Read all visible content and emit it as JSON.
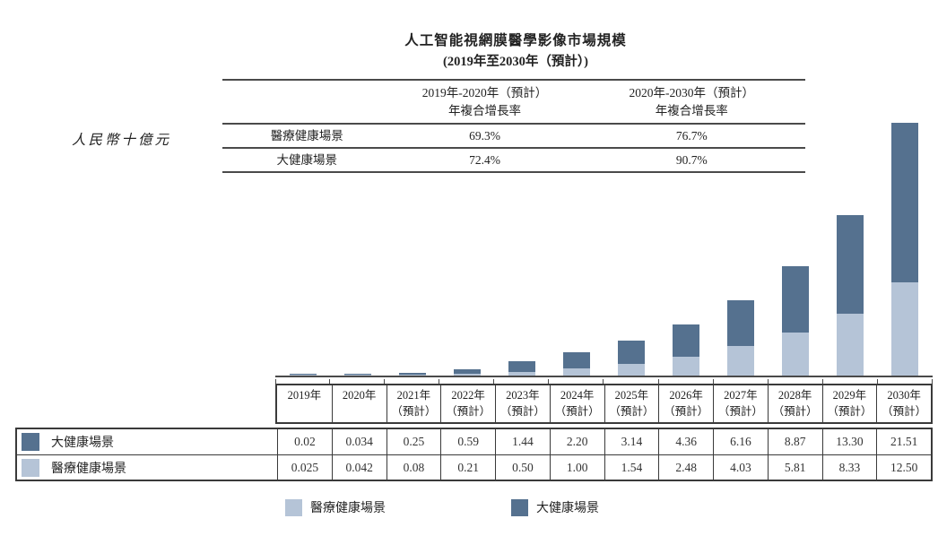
{
  "title": {
    "line1": "人工智能視網膜醫學影像市場規模",
    "line2": "(2019年至2030年（預計）)"
  },
  "unit_label": "人民幣十億元",
  "cagr_table": {
    "headers": [
      {
        "line1": "2019年-2020年（預計）",
        "line2": "年複合增長率"
      },
      {
        "line1": "2020年-2030年（預計）",
        "line2": "年複合增長率"
      }
    ],
    "rows": [
      {
        "label": "醫療健康場景",
        "values": [
          "69.3%",
          "76.7%"
        ]
      },
      {
        "label": "大健康場景",
        "values": [
          "72.4%",
          "90.7%"
        ]
      }
    ]
  },
  "chart_data": {
    "type": "bar",
    "stacked": true,
    "title": "人工智能視網膜醫學影像市場規模（2019年至2030年（預計））",
    "ylabel": "人民幣十億元",
    "grid": false,
    "legend_position": "bottom",
    "ylim": [
      0,
      35
    ],
    "categories": [
      "2019年",
      "2020年",
      "2021年（預計）",
      "2022年（預計）",
      "2023年（預計）",
      "2024年（預計）",
      "2025年（預計）",
      "2026年（預計）",
      "2027年（預計）",
      "2028年（預計）",
      "2029年（預計）",
      "2030年（預計）"
    ],
    "stack_order_bottom_to_top": [
      "醫療健康場景",
      "大健康場景"
    ],
    "series": [
      {
        "name": "醫療健康場景",
        "color": "#b5c4d7",
        "values": [
          0.025,
          0.042,
          0.08,
          0.21,
          0.5,
          1.0,
          1.54,
          2.48,
          4.03,
          5.81,
          8.33,
          12.5
        ]
      },
      {
        "name": "大健康場景",
        "color": "#55718f",
        "values": [
          0.02,
          0.034,
          0.25,
          0.59,
          1.44,
          2.2,
          3.14,
          4.36,
          6.16,
          8.87,
          13.3,
          21.51
        ]
      }
    ],
    "cagr_annotations": {
      "醫療健康場景": {
        "2019年-2020年（預計）": "69.3%",
        "2020年-2030年（預計）": "76.7%"
      },
      "大健康場景": {
        "2019年-2020年（預計）": "72.4%",
        "2020年-2030年（預計）": "90.7%"
      }
    }
  },
  "year_table": {
    "headers": [
      {
        "line1": "2019年",
        "line2": ""
      },
      {
        "line1": "2020年",
        "line2": ""
      },
      {
        "line1": "2021年",
        "line2": "（預計）"
      },
      {
        "line1": "2022年",
        "line2": "（預計）"
      },
      {
        "line1": "2023年",
        "line2": "（預計）"
      },
      {
        "line1": "2024年",
        "line2": "（預計）"
      },
      {
        "line1": "2025年",
        "line2": "（預計）"
      },
      {
        "line1": "2026年",
        "line2": "（預計）"
      },
      {
        "line1": "2027年",
        "line2": "（預計）"
      },
      {
        "line1": "2028年",
        "line2": "（預計）"
      },
      {
        "line1": "2029年",
        "line2": "（預計）"
      },
      {
        "line1": "2030年",
        "line2": "（預計）"
      }
    ]
  },
  "data_table": {
    "rows": [
      {
        "label": "大健康場景",
        "swatch_color": "#55718f",
        "values": [
          "0.02",
          "0.034",
          "0.25",
          "0.59",
          "1.44",
          "2.20",
          "3.14",
          "4.36",
          "6.16",
          "8.87",
          "13.30",
          "21.51"
        ]
      },
      {
        "label": "醫療健康場景",
        "swatch_color": "#b5c4d7",
        "values": [
          "0.025",
          "0.042",
          "0.08",
          "0.21",
          "0.50",
          "1.00",
          "1.54",
          "2.48",
          "4.03",
          "5.81",
          "8.33",
          "12.50"
        ]
      }
    ]
  },
  "legend": {
    "items": [
      {
        "label": "醫療健康場景",
        "color": "#b5c4d7"
      },
      {
        "label": "大健康場景",
        "color": "#55718f"
      }
    ]
  }
}
